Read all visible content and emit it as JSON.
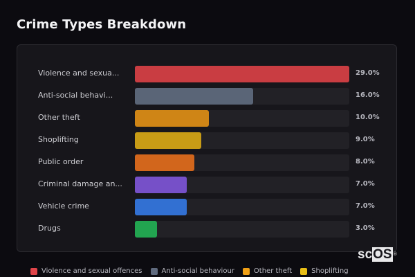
{
  "title": "Crime Types Breakdown",
  "rows": [
    {
      "label": "Violence and sexua...",
      "value": "29.0%",
      "pct": 29.0,
      "color": "#c93d42"
    },
    {
      "label": "Anti-social behavi...",
      "value": "16.0%",
      "pct": 16.0,
      "color": "#5a6577"
    },
    {
      "label": "Other theft",
      "value": "10.0%",
      "pct": 10.0,
      "color": "#cf8516"
    },
    {
      "label": "Shoplifting",
      "value": "9.0%",
      "pct": 9.0,
      "color": "#c89c16"
    },
    {
      "label": "Public order",
      "value": "8.0%",
      "pct": 8.0,
      "color": "#d2661c"
    },
    {
      "label": "Criminal damage an...",
      "value": "7.0%",
      "pct": 7.0,
      "color": "#7650c8"
    },
    {
      "label": "Vehicle crime",
      "value": "7.0%",
      "pct": 7.0,
      "color": "#3270d2"
    },
    {
      "label": "Drugs",
      "value": "3.0%",
      "pct": 3.0,
      "color": "#22a450"
    }
  ],
  "legend": [
    {
      "label": "Violence and sexual offences",
      "color": "#e0454a"
    },
    {
      "label": "Anti-social behaviour",
      "color": "#5f6a7e"
    },
    {
      "label": "Other theft",
      "color": "#f0a015"
    },
    {
      "label": "Shoplifting",
      "color": "#e8be16"
    }
  ],
  "logo": {
    "sc": "sc",
    "os": "OS",
    "reg": "®"
  },
  "chart_data": {
    "type": "bar",
    "orientation": "horizontal",
    "title": "Crime Types Breakdown",
    "categories": [
      "Violence and sexual offences",
      "Anti-social behaviour",
      "Other theft",
      "Shoplifting",
      "Public order",
      "Criminal damage and arson",
      "Vehicle crime",
      "Drugs"
    ],
    "display_labels": [
      "Violence and sexua...",
      "Anti-social behavi...",
      "Other theft",
      "Shoplifting",
      "Public order",
      "Criminal damage an...",
      "Vehicle crime",
      "Drugs"
    ],
    "values": [
      29.0,
      16.0,
      10.0,
      9.0,
      8.0,
      7.0,
      7.0,
      3.0
    ],
    "unit": "%",
    "xlim": [
      0,
      29
    ],
    "colors": [
      "#c93d42",
      "#5a6577",
      "#cf8516",
      "#c89c16",
      "#d2661c",
      "#7650c8",
      "#3270d2",
      "#22a450"
    ],
    "legend": [
      "Violence and sexual offences",
      "Anti-social behaviour",
      "Other theft",
      "Shoplifting"
    ],
    "legend_position": "bottom",
    "grid": false
  }
}
